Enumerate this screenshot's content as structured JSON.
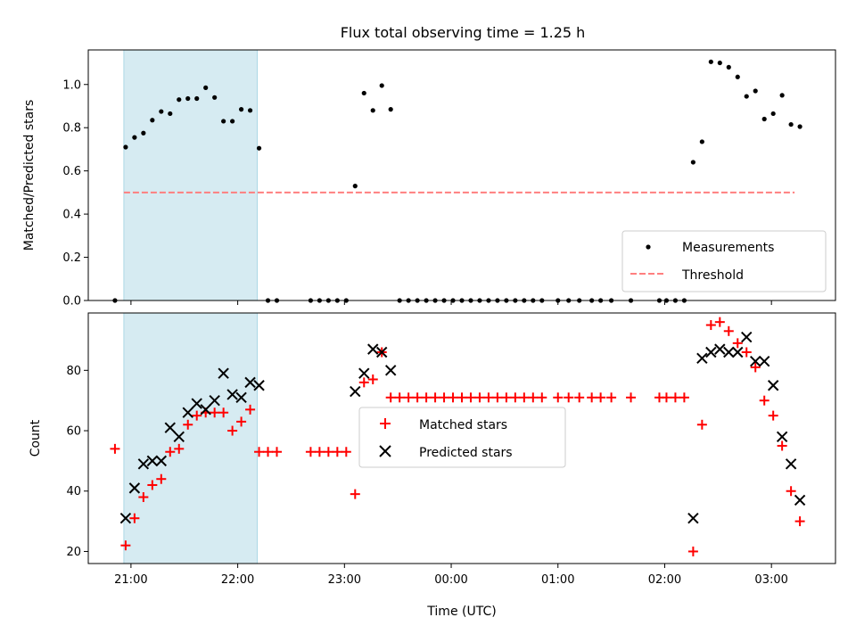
{
  "chart_data": [
    {
      "type": "scatter",
      "title": "Flux total observing time = 1.25 h",
      "xlabel": "",
      "ylabel": "Matched/Predicted stars",
      "xlim": [
        "20:36",
        "03:36"
      ],
      "ylim": [
        0,
        1.16
      ],
      "yticks": [
        "0.0",
        "0.2",
        "0.4",
        "0.6",
        "0.8",
        "1.0"
      ],
      "shaded_region": {
        "x": [
          "20:56",
          "22:11"
        ],
        "color": "#add8e6"
      },
      "threshold": {
        "name": "Threshold",
        "y": 0.5,
        "x": [
          "20:56",
          "03:13"
        ],
        "color": "#ff7f7f"
      },
      "legend_position": "lower-right",
      "series": [
        {
          "name": "Measurements",
          "marker": "dot",
          "color": "#000000",
          "points": [
            [
              "20:51",
              0.0
            ],
            [
              "20:57",
              0.71
            ],
            [
              "21:02",
              0.755
            ],
            [
              "21:07",
              0.775
            ],
            [
              "21:12",
              0.835
            ],
            [
              "21:17",
              0.875
            ],
            [
              "21:22",
              0.865
            ],
            [
              "21:27",
              0.93
            ],
            [
              "21:32",
              0.935
            ],
            [
              "21:37",
              0.935
            ],
            [
              "21:42",
              0.985
            ],
            [
              "21:47",
              0.94
            ],
            [
              "21:52",
              0.83
            ],
            [
              "21:57",
              0.83
            ],
            [
              "22:02",
              0.885
            ],
            [
              "22:07",
              0.88
            ],
            [
              "22:12",
              0.705
            ],
            [
              "22:17",
              0.0
            ],
            [
              "22:22",
              0.0
            ],
            [
              "22:41",
              0.0
            ],
            [
              "22:46",
              0.0
            ],
            [
              "22:51",
              0.0
            ],
            [
              "22:56",
              0.0
            ],
            [
              "23:01",
              0.0
            ],
            [
              "23:06",
              0.53
            ],
            [
              "23:11",
              0.96
            ],
            [
              "23:16",
              0.88
            ],
            [
              "23:21",
              0.995
            ],
            [
              "23:26",
              0.885
            ],
            [
              "23:31",
              0.0
            ],
            [
              "23:36",
              0.0
            ],
            [
              "23:41",
              0.0
            ],
            [
              "23:46",
              0.0
            ],
            [
              "23:51",
              0.0
            ],
            [
              "23:56",
              0.0
            ],
            [
              "00:01",
              0.0
            ],
            [
              "00:06",
              0.0
            ],
            [
              "00:11",
              0.0
            ],
            [
              "00:16",
              0.0
            ],
            [
              "00:21",
              0.0
            ],
            [
              "00:26",
              0.0
            ],
            [
              "00:31",
              0.0
            ],
            [
              "00:36",
              0.0
            ],
            [
              "00:41",
              0.0
            ],
            [
              "00:46",
              0.0
            ],
            [
              "00:51",
              0.0
            ],
            [
              "01:00",
              0.0
            ],
            [
              "01:06",
              0.0
            ],
            [
              "01:12",
              0.0
            ],
            [
              "01:19",
              0.0
            ],
            [
              "01:24",
              0.0
            ],
            [
              "01:30",
              0.0
            ],
            [
              "01:41",
              0.0
            ],
            [
              "01:57",
              0.0
            ],
            [
              "02:01",
              0.0
            ],
            [
              "02:06",
              0.0
            ],
            [
              "02:11",
              0.0
            ],
            [
              "02:16",
              0.64
            ],
            [
              "02:21",
              0.735
            ],
            [
              "02:26",
              1.105
            ],
            [
              "02:31",
              1.1
            ],
            [
              "02:36",
              1.08
            ],
            [
              "02:41",
              1.035
            ],
            [
              "02:46",
              0.945
            ],
            [
              "02:51",
              0.97
            ],
            [
              "02:56",
              0.84
            ],
            [
              "03:01",
              0.865
            ],
            [
              "03:06",
              0.95
            ],
            [
              "03:11",
              0.815
            ],
            [
              "03:16",
              0.805
            ]
          ]
        }
      ]
    },
    {
      "type": "scatter",
      "title": "",
      "xlabel": "Time (UTC)",
      "ylabel": "Count",
      "xlim": [
        "20:36",
        "03:36"
      ],
      "ylim": [
        16,
        99
      ],
      "yticks": [
        "20",
        "40",
        "60",
        "80"
      ],
      "xticks": [
        "21:00",
        "22:00",
        "23:00",
        "00:00",
        "01:00",
        "02:00",
        "03:00"
      ],
      "shaded_region": {
        "x": [
          "20:56",
          "22:11"
        ],
        "color": "#add8e6"
      },
      "legend_position": "center",
      "series": [
        {
          "name": "Matched stars",
          "marker": "plus",
          "color": "#ff0000",
          "points": [
            [
              "20:51",
              54
            ],
            [
              "20:57",
              22
            ],
            [
              "21:02",
              31
            ],
            [
              "21:07",
              38
            ],
            [
              "21:12",
              42
            ],
            [
              "21:17",
              44
            ],
            [
              "21:22",
              53
            ],
            [
              "21:27",
              54
            ],
            [
              "21:32",
              62
            ],
            [
              "21:37",
              65
            ],
            [
              "21:42",
              66
            ],
            [
              "21:47",
              66
            ],
            [
              "21:52",
              66
            ],
            [
              "21:57",
              60
            ],
            [
              "22:02",
              63
            ],
            [
              "22:07",
              67
            ],
            [
              "22:12",
              53
            ],
            [
              "22:17",
              53
            ],
            [
              "22:22",
              53
            ],
            [
              "22:41",
              53
            ],
            [
              "22:46",
              53
            ],
            [
              "22:51",
              53
            ],
            [
              "22:56",
              53
            ],
            [
              "23:01",
              53
            ],
            [
              "23:06",
              39
            ],
            [
              "23:11",
              76
            ],
            [
              "23:16",
              77
            ],
            [
              "23:21",
              86
            ],
            [
              "23:26",
              71
            ],
            [
              "23:31",
              71
            ],
            [
              "23:36",
              71
            ],
            [
              "23:41",
              71
            ],
            [
              "23:46",
              71
            ],
            [
              "23:51",
              71
            ],
            [
              "23:56",
              71
            ],
            [
              "00:01",
              71
            ],
            [
              "00:06",
              71
            ],
            [
              "00:11",
              71
            ],
            [
              "00:16",
              71
            ],
            [
              "00:21",
              71
            ],
            [
              "00:26",
              71
            ],
            [
              "00:31",
              71
            ],
            [
              "00:36",
              71
            ],
            [
              "00:41",
              71
            ],
            [
              "00:46",
              71
            ],
            [
              "00:51",
              71
            ],
            [
              "01:00",
              71
            ],
            [
              "01:06",
              71
            ],
            [
              "01:12",
              71
            ],
            [
              "01:19",
              71
            ],
            [
              "01:24",
              71
            ],
            [
              "01:30",
              71
            ],
            [
              "01:41",
              71
            ],
            [
              "01:57",
              71
            ],
            [
              "02:01",
              71
            ],
            [
              "02:06",
              71
            ],
            [
              "02:11",
              71
            ],
            [
              "02:16",
              20
            ],
            [
              "02:21",
              62
            ],
            [
              "02:26",
              95
            ],
            [
              "02:31",
              96
            ],
            [
              "02:36",
              93
            ],
            [
              "02:41",
              89
            ],
            [
              "02:46",
              86
            ],
            [
              "02:51",
              81
            ],
            [
              "02:56",
              70
            ],
            [
              "03:01",
              65
            ],
            [
              "03:06",
              55
            ],
            [
              "03:11",
              40
            ],
            [
              "03:16",
              30
            ]
          ]
        },
        {
          "name": "Predicted stars",
          "marker": "x",
          "color": "#000000",
          "points": [
            [
              "20:57",
              31
            ],
            [
              "21:02",
              41
            ],
            [
              "21:07",
              49
            ],
            [
              "21:12",
              50
            ],
            [
              "21:17",
              50
            ],
            [
              "21:22",
              61
            ],
            [
              "21:27",
              58
            ],
            [
              "21:32",
              66
            ],
            [
              "21:37",
              69
            ],
            [
              "21:42",
              67
            ],
            [
              "21:47",
              70
            ],
            [
              "21:52",
              79
            ],
            [
              "21:57",
              72
            ],
            [
              "22:02",
              71
            ],
            [
              "22:07",
              76
            ],
            [
              "22:12",
              75
            ],
            [
              "23:06",
              73
            ],
            [
              "23:11",
              79
            ],
            [
              "23:16",
              87
            ],
            [
              "23:21",
              86
            ],
            [
              "23:26",
              80
            ],
            [
              "02:16",
              31
            ],
            [
              "02:21",
              84
            ],
            [
              "02:26",
              86
            ],
            [
              "02:31",
              87
            ],
            [
              "02:36",
              86
            ],
            [
              "02:41",
              86
            ],
            [
              "02:46",
              91
            ],
            [
              "02:51",
              83
            ],
            [
              "02:56",
              83
            ],
            [
              "03:01",
              75
            ],
            [
              "03:06",
              58
            ],
            [
              "03:11",
              49
            ],
            [
              "03:16",
              37
            ]
          ]
        }
      ]
    }
  ]
}
